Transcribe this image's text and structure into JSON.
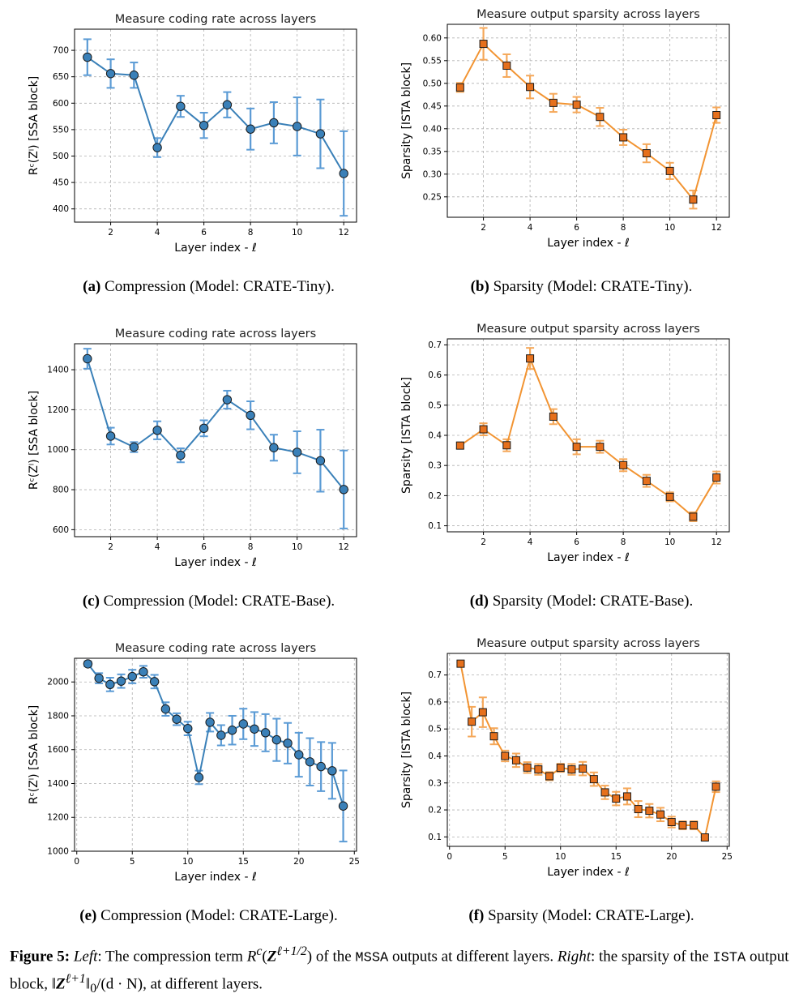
{
  "colors": {
    "blue": "#3a80b8",
    "blue_err": "#5b9bd5",
    "orange": "#f29432",
    "orange_err": "#f5a85a",
    "orange_fill": "#e6701c"
  },
  "captions": {
    "a": {
      "label": "(a)",
      "text": " Compression (Model: ",
      "model": "CRATE",
      "suffix": "-Tiny)."
    },
    "b": {
      "label": "(b)",
      "text": " Sparsity (Model: ",
      "model": "CRATE",
      "suffix": "-Tiny)."
    },
    "c": {
      "label": "(c)",
      "text": " Compression (Model: ",
      "model": "CRATE",
      "suffix": "-Base)."
    },
    "d": {
      "label": "(d)",
      "text": " Sparsity (Model: ",
      "model": "CRATE",
      "suffix": "-Base)."
    },
    "e": {
      "label": "(e)",
      "text": " Compression (Model: ",
      "model": "CRATE",
      "suffix": "-Large)."
    },
    "f": {
      "label": "(f)",
      "text": " Sparsity (Model: ",
      "model": "CRATE",
      "suffix": "-Large)."
    }
  },
  "figure_caption": {
    "label": "Figure 5:",
    "left": "Left",
    "part1": ": The compression term ",
    "math1": "R",
    "math1_sup": "c",
    "math1_arg": "(",
    "math1_bold": "Z",
    "math1_exp": "ℓ+1/2",
    "math1_close": ")",
    "part2": " of the ",
    "code1": "MSSA",
    "part3": " outputs at different layers. ",
    "right": "Right",
    "part4": ": the sparsity of the ",
    "code2": "ISTA",
    "part5": " output block, ‖",
    "math2_bold": "Z",
    "math2_exp": "ℓ+1",
    "part6": "‖",
    "math2_sub": "0",
    "part7": "/(d · N), at different layers."
  },
  "chart_data": [
    {
      "id": "a",
      "type": "line",
      "title": "Measure coding rate across layers",
      "xlabel": "Layer index - ℓ",
      "ylabel": "Rᶜ(Zˡ) [SSA block]",
      "marker": "circle",
      "color": "blue",
      "xlim": [
        0.45,
        12.55
      ],
      "ylim": [
        375,
        740
      ],
      "xticks": [
        2,
        4,
        6,
        8,
        10,
        12
      ],
      "yticks": [
        400,
        450,
        500,
        550,
        600,
        650,
        700
      ],
      "grid": true,
      "series": [
        {
          "x": [
            1,
            2,
            3,
            4,
            5,
            6,
            7,
            8,
            9,
            10,
            11,
            12
          ],
          "y": [
            687,
            656,
            653,
            516,
            594,
            558,
            597,
            551,
            563,
            556,
            542,
            467
          ],
          "err": [
            34,
            27,
            24,
            18,
            20,
            24,
            24,
            39,
            39,
            55,
            65,
            80
          ]
        }
      ]
    },
    {
      "id": "b",
      "type": "line",
      "title": "Measure output sparsity across layers",
      "xlabel": "Layer index - ℓ",
      "ylabel": "Sparsity [ISTA block]",
      "marker": "square",
      "color": "orange",
      "xlim": [
        0.45,
        12.55
      ],
      "ylim": [
        0.205,
        0.63
      ],
      "xticks": [
        2,
        4,
        6,
        8,
        10,
        12
      ],
      "yticks": [
        0.25,
        0.3,
        0.35,
        0.4,
        0.45,
        0.5,
        0.55,
        0.6
      ],
      "ytick_labels": [
        "0.25",
        "0.30",
        "0.35",
        "0.40",
        "0.45",
        "0.50",
        "0.55",
        "0.60"
      ],
      "grid": true,
      "series": [
        {
          "x": [
            1,
            2,
            3,
            4,
            5,
            6,
            7,
            8,
            9,
            10,
            11,
            12
          ],
          "y": [
            0.491,
            0.587,
            0.539,
            0.492,
            0.457,
            0.453,
            0.426,
            0.381,
            0.346,
            0.307,
            0.244,
            0.43
          ],
          "err": [
            0.01,
            0.035,
            0.025,
            0.025,
            0.02,
            0.017,
            0.02,
            0.017,
            0.02,
            0.018,
            0.02,
            0.017
          ]
        }
      ]
    },
    {
      "id": "c",
      "type": "line",
      "title": "Measure coding rate across layers",
      "xlabel": "Layer index - ℓ",
      "ylabel": "Rᶜ(Zˡ) [SSA block]",
      "marker": "circle",
      "color": "blue",
      "xlim": [
        0.45,
        12.55
      ],
      "ylim": [
        565,
        1530
      ],
      "xticks": [
        2,
        4,
        6,
        8,
        10,
        12
      ],
      "yticks": [
        600,
        800,
        1000,
        1200,
        1400
      ],
      "grid": true,
      "series": [
        {
          "x": [
            1,
            2,
            3,
            4,
            5,
            6,
            7,
            8,
            9,
            10,
            11,
            12
          ],
          "y": [
            1455,
            1068,
            1013,
            1097,
            972,
            1107,
            1250,
            1172,
            1010,
            987,
            945,
            801
          ],
          "err": [
            50,
            42,
            25,
            45,
            35,
            40,
            45,
            70,
            65,
            105,
            155,
            195
          ]
        }
      ]
    },
    {
      "id": "d",
      "type": "line",
      "title": "Measure output sparsity across layers",
      "xlabel": "Layer index - ℓ",
      "ylabel": "Sparsity [ISTA block]",
      "marker": "square",
      "color": "orange",
      "xlim": [
        0.45,
        12.55
      ],
      "ylim": [
        0.08,
        0.72
      ],
      "xticks": [
        2,
        4,
        6,
        8,
        10,
        12
      ],
      "yticks": [
        0.1,
        0.2,
        0.3,
        0.4,
        0.5,
        0.6,
        0.7
      ],
      "ytick_labels": [
        "0.1",
        "0.2",
        "0.3",
        "0.4",
        "0.5",
        "0.6",
        "0.7"
      ],
      "grid": true,
      "series": [
        {
          "x": [
            1,
            2,
            3,
            4,
            5,
            6,
            7,
            8,
            9,
            10,
            11,
            12
          ],
          "y": [
            0.366,
            0.42,
            0.367,
            0.655,
            0.462,
            0.362,
            0.362,
            0.301,
            0.249,
            0.196,
            0.13,
            0.26
          ],
          "err": [
            0.01,
            0.02,
            0.02,
            0.035,
            0.025,
            0.025,
            0.02,
            0.02,
            0.02,
            0.015,
            0.015,
            0.02
          ]
        }
      ]
    },
    {
      "id": "e",
      "type": "line",
      "title": "Measure coding rate across layers",
      "xlabel": "Layer index - ℓ",
      "ylabel": "Rᶜ(Zˡ) [SSA block]",
      "marker": "circle",
      "color": "blue",
      "xlim": [
        -0.2,
        25.2
      ],
      "ylim": [
        1000,
        2140
      ],
      "xticks": [
        0,
        5,
        10,
        15,
        20,
        25
      ],
      "yticks": [
        1000,
        1200,
        1400,
        1600,
        1800,
        2000
      ],
      "grid": true,
      "series": [
        {
          "x": [
            1,
            2,
            3,
            4,
            5,
            6,
            7,
            8,
            9,
            10,
            11,
            12,
            13,
            14,
            15,
            16,
            17,
            18,
            19,
            20,
            21,
            22,
            23,
            24
          ],
          "y": [
            2107,
            2022,
            1985,
            2005,
            2032,
            2060,
            2002,
            1840,
            1780,
            1725,
            1436,
            1762,
            1685,
            1715,
            1752,
            1722,
            1700,
            1658,
            1638,
            1570,
            1528,
            1500,
            1475,
            1267
          ],
          "err": [
            15,
            30,
            40,
            40,
            40,
            35,
            40,
            40,
            35,
            40,
            40,
            55,
            60,
            85,
            90,
            100,
            110,
            125,
            120,
            130,
            140,
            145,
            165,
            210
          ]
        }
      ]
    },
    {
      "id": "f",
      "type": "line",
      "title": "Measure output sparsity across layers",
      "xlabel": "Layer index - ℓ",
      "ylabel": "Sparsity [ISTA block]",
      "marker": "square",
      "color": "orange",
      "xlim": [
        -0.2,
        25.2
      ],
      "ylim": [
        0.065,
        0.78
      ],
      "xticks": [
        0,
        5,
        10,
        15,
        20,
        25
      ],
      "yticks": [
        0.1,
        0.2,
        0.3,
        0.4,
        0.5,
        0.6,
        0.7
      ],
      "ytick_labels": [
        "0.1",
        "0.2",
        "0.3",
        "0.4",
        "0.5",
        "0.6",
        "0.7"
      ],
      "grid": true,
      "series": [
        {
          "x": [
            1,
            2,
            3,
            4,
            5,
            6,
            7,
            8,
            9,
            10,
            11,
            12,
            13,
            14,
            15,
            16,
            17,
            18,
            19,
            20,
            21,
            22,
            23,
            24
          ],
          "y": [
            0.742,
            0.527,
            0.562,
            0.473,
            0.4,
            0.384,
            0.357,
            0.35,
            0.325,
            0.356,
            0.35,
            0.353,
            0.314,
            0.265,
            0.242,
            0.25,
            0.203,
            0.197,
            0.183,
            0.155,
            0.143,
            0.143,
            0.098,
            0.286
          ],
          "err": [
            0.005,
            0.055,
            0.055,
            0.03,
            0.02,
            0.025,
            0.02,
            0.02,
            0.015,
            0.015,
            0.02,
            0.025,
            0.025,
            0.025,
            0.025,
            0.03,
            0.03,
            0.025,
            0.025,
            0.02,
            0.015,
            0.015,
            0.01,
            0.02
          ]
        }
      ]
    }
  ]
}
